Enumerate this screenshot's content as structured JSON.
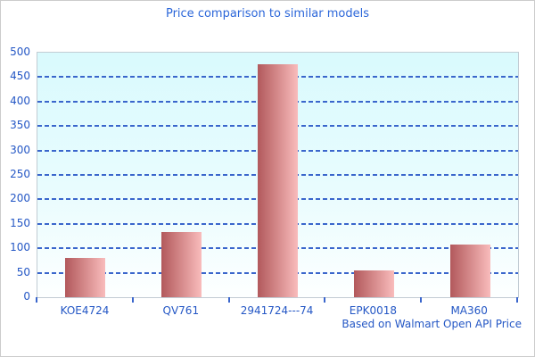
{
  "chart_data": {
    "type": "bar",
    "title": "Price comparison to similar models",
    "footer": "Based on Walmart Open API Price",
    "categories": [
      "KOE4724",
      "QV761",
      "2941724---74",
      "EPK0018",
      "MA360"
    ],
    "values": [
      80,
      134,
      476,
      54,
      107
    ],
    "yticks": [
      0,
      50,
      100,
      150,
      200,
      250,
      300,
      350,
      400,
      450,
      500
    ],
    "ylim": [
      0,
      500
    ],
    "xlabel": "",
    "ylabel": "",
    "grid": true,
    "grid_style": "dashed",
    "legend": false,
    "colors": {
      "title_text": "#2b66d9",
      "axis_text": "#2457c5",
      "gridline": "#3a66cc",
      "bar_gradient_left": "#b2595c",
      "bar_gradient_right": "#f9bcbc",
      "plot_bg_top": "#d9fafd",
      "plot_bg_bottom": "#fdffff",
      "frame_border": "#cccccc",
      "plot_border": "#c2ccd4"
    }
  }
}
